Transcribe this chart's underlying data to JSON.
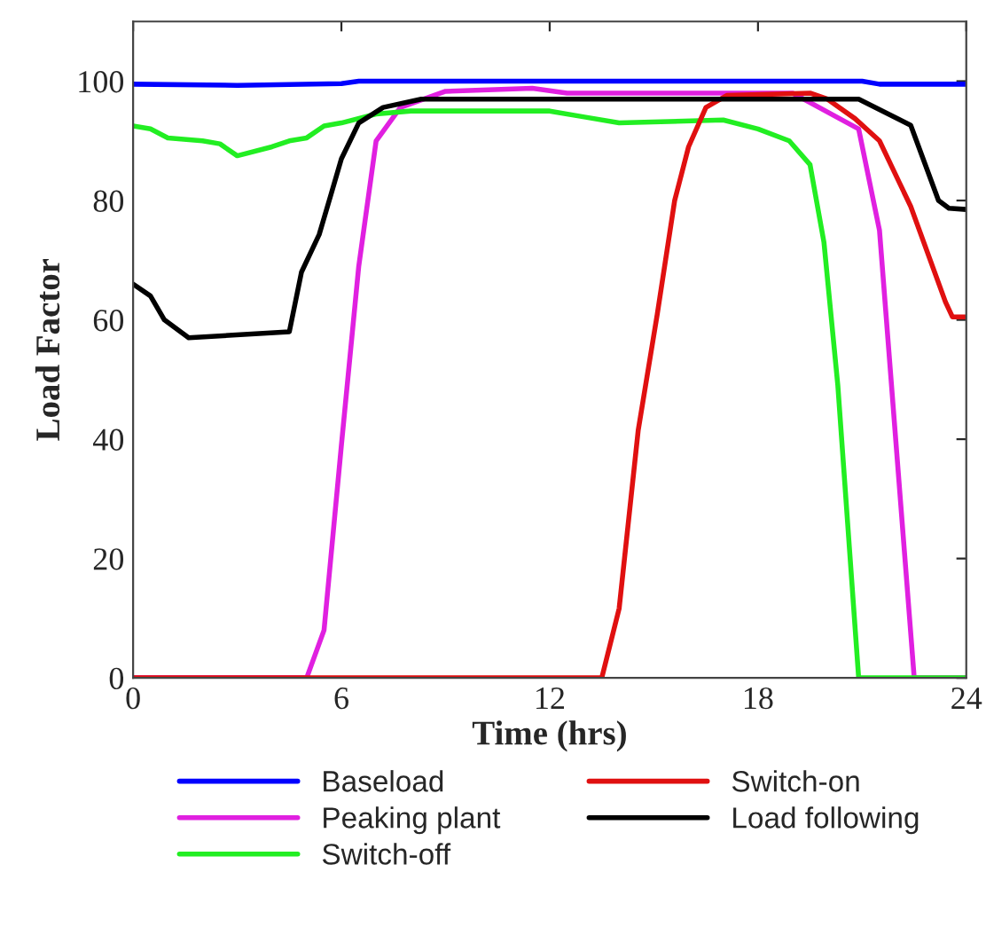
{
  "chart_data": {
    "type": "line",
    "xlabel": "Time (hrs)",
    "ylabel": "Load Factor",
    "xlim": [
      0,
      24
    ],
    "xticks": [
      0,
      6,
      12,
      18,
      24
    ],
    "ylim": [
      0,
      110
    ],
    "yticks": [
      0,
      20,
      40,
      60,
      80,
      100
    ],
    "grid": false,
    "legend": "bottom",
    "marker": "none",
    "line_style": "solid",
    "series": [
      {
        "name": "Baseload",
        "color": "#0000ff",
        "x": [
          0,
          3,
          6,
          6.5,
          21,
          21.5,
          24
        ],
        "values": [
          99.5,
          99.3,
          99.6,
          100,
          100,
          99.5,
          99.5
        ]
      },
      {
        "name": "Peaking plant",
        "color": "#e020e0",
        "x": [
          0,
          5,
          5.5,
          6,
          6.5,
          7,
          7.7,
          9,
          11.5,
          12.5,
          19,
          20.9,
          21.5,
          22.5,
          24
        ],
        "values": [
          0,
          0,
          8,
          39,
          69,
          90,
          95.6,
          98.3,
          98.8,
          98,
          98,
          92,
          75,
          0,
          0
        ]
      },
      {
        "name": "Switch-off",
        "color": "#22ee22",
        "x": [
          0,
          0.5,
          1,
          2,
          2.5,
          3,
          4,
          4.5,
          5,
          5.5,
          6,
          7,
          8,
          12,
          13,
          14,
          17,
          18,
          18.9,
          19.5,
          19.9,
          20.3,
          20.9,
          24
        ],
        "values": [
          92.5,
          92,
          90.5,
          90,
          89.5,
          87.5,
          89,
          90,
          90.5,
          92.5,
          93,
          94.5,
          95,
          95,
          94,
          93,
          93.5,
          92,
          90,
          86,
          73,
          49,
          0,
          0
        ]
      },
      {
        "name": "Switch-on",
        "color": "#e01010",
        "x": [
          0,
          13.5,
          14,
          14.55,
          15.1,
          15.6,
          16,
          16.5,
          17.1,
          19.5,
          20,
          20.8,
          21.5,
          22.4,
          23.4,
          23.6,
          24
        ],
        "values": [
          0,
          0,
          11.6,
          41.5,
          61,
          80,
          89,
          95.6,
          97.6,
          98,
          97,
          93.7,
          90,
          79,
          63,
          60.5,
          60.5
        ]
      },
      {
        "name": "Load following",
        "color": "#000000",
        "x": [
          0,
          0.5,
          0.9,
          1.6,
          4.5,
          4.85,
          5.36,
          5.7,
          6,
          6.5,
          7.2,
          8.3,
          20.9,
          22.4,
          23.2,
          23.5,
          24
        ],
        "values": [
          66,
          64,
          60,
          57,
          58,
          68,
          74.3,
          81,
          87,
          93,
          95.6,
          97,
          97,
          92.6,
          80,
          78.7,
          78.5
        ]
      }
    ]
  }
}
